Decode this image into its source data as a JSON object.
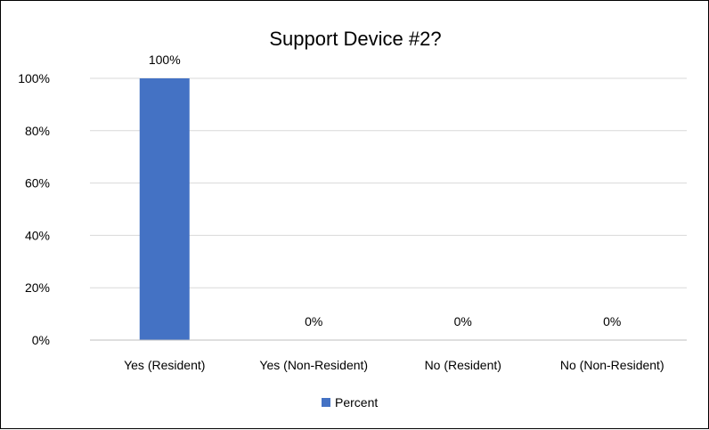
{
  "chart_data": {
    "type": "bar",
    "title": "Support Device #2?",
    "xlabel": "",
    "ylabel": "",
    "categories": [
      "Yes (Resident)",
      "Yes (Non-Resident)",
      "No (Resident)",
      "No (Non-Resident)"
    ],
    "series": [
      {
        "name": "Percent",
        "values": [
          100,
          0,
          0,
          0
        ],
        "data_labels": [
          "100%",
          "0%",
          "0%",
          "0%"
        ],
        "color": "#4472C4"
      }
    ],
    "ylim": [
      0,
      100
    ],
    "yticks": [
      0,
      20,
      40,
      60,
      80,
      100
    ],
    "ytick_labels": [
      "0%",
      "20%",
      "40%",
      "60%",
      "80%",
      "100%"
    ],
    "grid": true,
    "gridline_color": "#d9d9d9",
    "legend_position": "bottom"
  }
}
